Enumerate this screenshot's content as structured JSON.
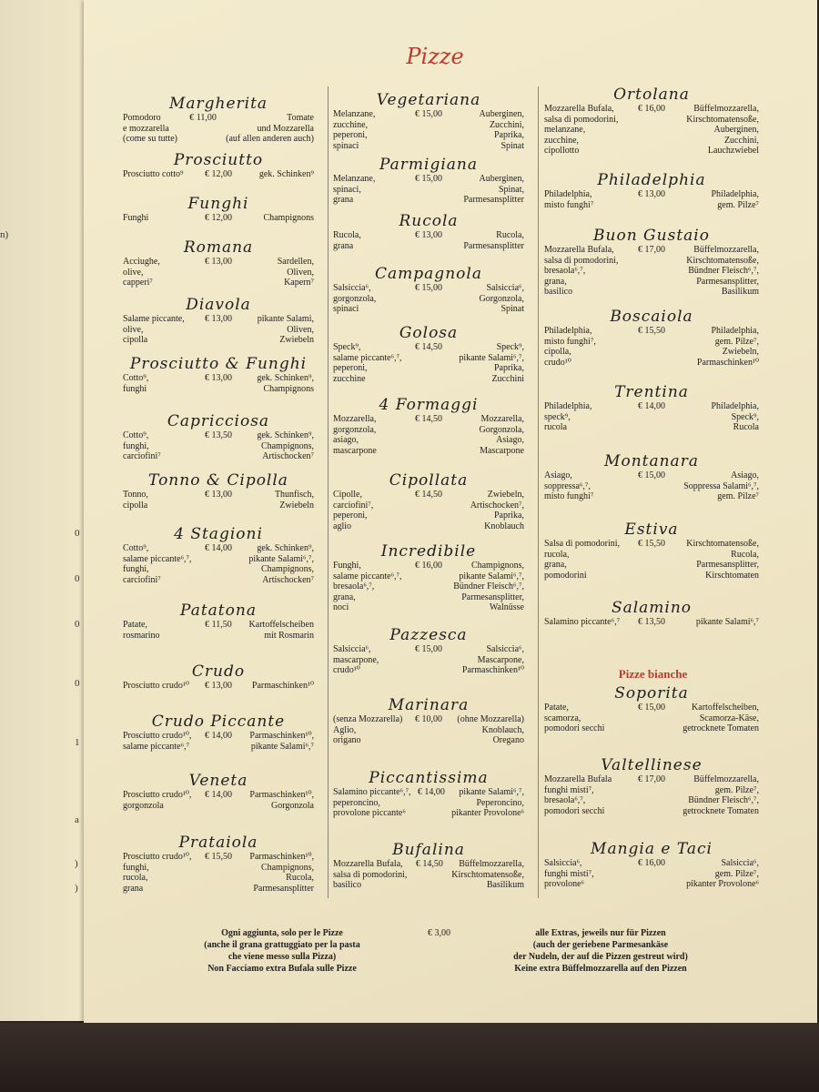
{
  "title": "Pizze",
  "left_page_fragments": [
    "n)",
    "0",
    "0",
    "0",
    "0",
    "1",
    "a",
    ")",
    ")"
  ],
  "columns": [
    {
      "items": [
        {
          "name": "Margherita",
          "price": "€ 11,00",
          "it": [
            "Pomodoro",
            "e mozzarella",
            "(come su tutte)"
          ],
          "de": [
            "Tomate",
            "und Mozzarella",
            "(auf allen anderen auch)"
          ]
        },
        {
          "name": "Prosciutto",
          "price": "€ 12,00",
          "it": [
            "Prosciutto cotto⁹"
          ],
          "de": [
            "gek. Schinken⁹"
          ]
        },
        {
          "name": "Funghi",
          "price": "€ 12,00",
          "it": [
            "Funghi"
          ],
          "de": [
            "Champignons"
          ]
        },
        {
          "name": "Romana",
          "price": "€ 13,00",
          "it": [
            "Acciughe,",
            "olive,",
            "capperi⁷"
          ],
          "de": [
            "Sardellen,",
            "Oliven,",
            "Kapern⁷"
          ]
        },
        {
          "name": "Diavola",
          "price": "€ 13,00",
          "it": [
            "Salame piccante,",
            "olive,",
            "cipolla"
          ],
          "de": [
            "pikante Salami,",
            "Oliven,",
            "Zwiebeln"
          ]
        },
        {
          "name": "Prosciutto & Funghi",
          "price": "€ 13,00",
          "it": [
            "Cotto⁹,",
            "funghi"
          ],
          "de": [
            "gek. Schinken⁹,",
            "Champignons"
          ]
        },
        {
          "name": "Capricciosa",
          "price": "€ 13,50",
          "it": [
            "Cotto⁹,",
            "funghi,",
            "carciofini⁷"
          ],
          "de": [
            "gek. Schinken⁹,",
            "Champignons,",
            "Artischocken⁷"
          ]
        },
        {
          "name": "Tonno & Cipolla",
          "price": "€ 13,00",
          "it": [
            "Tonno,",
            "cipolla"
          ],
          "de": [
            "Thunfisch,",
            "Zwiebeln"
          ]
        },
        {
          "name": "4 Stagioni",
          "price": "€ 14,00",
          "it": [
            "Cotto⁹,",
            "salame piccante⁶,⁷,",
            "funghi,",
            "carciofini⁷"
          ],
          "de": [
            "gek. Schinken⁹,",
            "pikante Salami⁶,⁷,",
            "Champignons,",
            "Artischocken⁷"
          ]
        },
        {
          "name": "Patatona",
          "price": "€ 11,50",
          "it": [
            "Patate,",
            "rosmarino"
          ],
          "de": [
            "Kartoffelscheiben",
            "mit Rosmarin"
          ]
        },
        {
          "name": "Crudo",
          "price": "€ 13,00",
          "it": [
            "Prosciutto crudo¹⁰"
          ],
          "de": [
            "Parmaschinken¹⁰"
          ]
        },
        {
          "name": "Crudo Piccante",
          "price": "€ 14,00",
          "it": [
            "Prosciutto crudo¹⁰,",
            "salame piccante⁶,⁷"
          ],
          "de": [
            "Parmaschinken¹⁰,",
            "pikante Salami⁶,⁷"
          ]
        },
        {
          "name": "Veneta",
          "price": "€ 14,00",
          "it": [
            "Prosciutto crudo¹⁰,",
            "gorgonzola"
          ],
          "de": [
            "Parmaschinken¹⁰,",
            "Gorgonzola"
          ]
        },
        {
          "name": "Prataiola",
          "price": "€ 15,50",
          "it": [
            "Prosciutto crudo¹⁰,",
            "funghi,",
            "rucola,",
            "grana"
          ],
          "de": [
            "Parmaschinken¹⁰,",
            "Champignons,",
            "Rucola,",
            "Parmesansplitter"
          ]
        }
      ]
    },
    {
      "items": [
        {
          "name": "Vegetariana",
          "price": "€ 15,00",
          "it": [
            "Melanzane,",
            "zucchine,",
            "peperoni,",
            "spinaci"
          ],
          "de": [
            "Auberginen,",
            "Zucchini,",
            "Paprika,",
            "Spinat"
          ]
        },
        {
          "name": "Parmigiana",
          "price": "€ 15,00",
          "it": [
            "Melanzane,",
            "spinaci,",
            "grana"
          ],
          "de": [
            "Auberginen,",
            "Spinat,",
            "Parmesansplitter"
          ]
        },
        {
          "name": "Rucola",
          "price": "€ 13,00",
          "it": [
            "Rucola,",
            "grana"
          ],
          "de": [
            "Rucola,",
            "Parmesansplitter"
          ]
        },
        {
          "name": "Campagnola",
          "price": "€ 15,00",
          "it": [
            "Salsiccia⁶,",
            "gorgonzola,",
            "spinaci"
          ],
          "de": [
            "Salsiccia⁶,",
            "Gorgonzola,",
            "Spinat"
          ]
        },
        {
          "name": "Golosa",
          "price": "€ 14,50",
          "it": [
            "Speck⁹,",
            "salame piccante⁶,⁷,",
            "peperoni,",
            "zucchine"
          ],
          "de": [
            "Speck⁹,",
            "pikante Salami⁶,⁷,",
            "Paprika,",
            "Zucchini"
          ]
        },
        {
          "name": "4 Formaggi",
          "price": "€ 14,50",
          "it": [
            "Mozzarella,",
            "gorgonzola,",
            "asiago,",
            "mascarpone"
          ],
          "de": [
            "Mozzarella,",
            "Gorgonzola,",
            "Asiago,",
            "Mascarpone"
          ]
        },
        {
          "name": "Cipollata",
          "price": "€ 14,50",
          "it": [
            "Cipolle,",
            "carciofini⁷,",
            "peperoni,",
            "aglio"
          ],
          "de": [
            "Zwiebeln,",
            "Artischocken⁷,",
            "Paprika,",
            "Knoblauch"
          ]
        },
        {
          "name": "Incredibile",
          "price": "€ 16,00",
          "it": [
            "Funghi,",
            "salame piccante⁶,⁷,",
            "bresaola⁶,⁷,",
            "grana,",
            "noci"
          ],
          "de": [
            "Champignons,",
            "pikante Salami⁶,⁷,",
            "Bündner Fleisch⁶,⁷,",
            "Parmesansplitter,",
            "Walnüsse"
          ]
        },
        {
          "name": "Pazzesca",
          "price": "€ 15,00",
          "it": [
            "Salsiccia⁶,",
            "mascarpone,",
            "crudo¹⁰"
          ],
          "de": [
            "Salsiccia⁶,",
            "Mascarpone,",
            "Parmaschinken¹⁰"
          ]
        },
        {
          "name": "Marinara",
          "price": "€ 10,00",
          "it": [
            "(senza Mozzarella)",
            "Aglio,",
            "origano"
          ],
          "de": [
            "(ohne Mozzarella)",
            "Knoblauch,",
            "Oregano"
          ]
        },
        {
          "name": "Piccantissima",
          "price": "€ 14,00",
          "it": [
            "Salamino piccante⁶,⁷,",
            "peperoncino,",
            "provolone piccante⁶"
          ],
          "de": [
            "pikante Salami⁶,⁷,",
            "Peperoncino,",
            "pikanter Provolone⁶"
          ]
        },
        {
          "name": "Bufalina",
          "price": "€ 14,50",
          "it": [
            "Mozzarella Bufala,",
            "salsa di pomodorini,",
            "basilico"
          ],
          "de": [
            "Büffelmozzarella,",
            "Kirschtomatensoße,",
            "Basilikum"
          ]
        }
      ]
    },
    {
      "items": [
        {
          "name": "Ortolana",
          "price": "€ 16,00",
          "it": [
            "Mozzarella Bufala,",
            "salsa di pomodorini,",
            "melanzane,",
            "zucchine,",
            "cipollotto"
          ],
          "de": [
            "Büffelmozzarella,",
            "Kirschtomatensoße,",
            "Auberginen,",
            "Zucchini,",
            "Lauchzwiebel"
          ]
        },
        {
          "name": "Philadelphia",
          "price": "€ 13,00",
          "it": [
            "Philadelphia,",
            "misto funghi⁷"
          ],
          "de": [
            "Philadelphia,",
            "gem. Pilze⁷"
          ]
        },
        {
          "name": "Buon Gustaio",
          "price": "€ 17,00",
          "it": [
            "Mozzarella Bufala,",
            "salsa di pomodorini,",
            "bresaola⁶,⁷,",
            "grana,",
            "basilico"
          ],
          "de": [
            "Büffelmozzarella,",
            "Kirschtomatensoße,",
            "Bündner Fleisch⁶,⁷,",
            "Parmesansplitter,",
            "Basilikum"
          ]
        },
        {
          "name": "Boscaiola",
          "price": "€ 15,50",
          "it": [
            "Philadelphia,",
            "misto funghi⁷,",
            "cipolla,",
            "crudo¹⁰"
          ],
          "de": [
            "Philadelphia,",
            "gem. Pilze⁷,",
            "Zwiebeln,",
            "Parmaschinken¹⁰"
          ]
        },
        {
          "name": "Trentina",
          "price": "€ 14,00",
          "it": [
            "Philadelphia,",
            "speck⁹,",
            "rucola"
          ],
          "de": [
            "Philadelphia,",
            "Speck⁹,",
            "Rucola"
          ]
        },
        {
          "name": "Montanara",
          "price": "€ 15,00",
          "it": [
            "Asiago,",
            "soppressa⁶,⁷,",
            "misto funghi⁷"
          ],
          "de": [
            "Asiago,",
            "Soppressa Salami⁶,⁷,",
            "gem. Pilze⁷"
          ]
        },
        {
          "name": "Estiva",
          "price": "€ 15,50",
          "it": [
            "Salsa di pomodorini,",
            "rucola,",
            "grana,",
            "pomodorini"
          ],
          "de": [
            "Kirschtomatensoße,",
            "Rucola,",
            "Parmesansplitter,",
            "Kirschtomaten"
          ]
        },
        {
          "name": "Salamino",
          "price": "€ 13,50",
          "it": [
            "Salamino piccante⁶,⁷"
          ],
          "de": [
            "pikante Salami⁶,⁷"
          ]
        },
        {
          "name": "Soporita",
          "price": "€ 15,00",
          "it": [
            "Patate,",
            "scamorza,",
            "pomodori secchi"
          ],
          "de": [
            "Kartoffelscheiben,",
            "Scamorza-Käse,",
            "getrocknete Tomaten"
          ]
        },
        {
          "name": "Valtellinese",
          "price": "€ 17,00",
          "it": [
            "Mozzarella Bufala",
            "funghi misti⁷,",
            "bresaola⁶,⁷,",
            "pomodori secchi"
          ],
          "de": [
            "Büffelmozzarella,",
            "gem. Pilze⁷,",
            "Bündner Fleisch⁶,⁷,",
            "getrocknete Tomaten"
          ]
        },
        {
          "name": "Mangia e Taci",
          "price": "€ 16,00",
          "it": [
            "Salsiccia⁶,",
            "funghi misti⁷,",
            "provolone⁶"
          ],
          "de": [
            "Salsiccia⁶,",
            "gem. Pilze⁷,",
            "pikanter Provolone⁶"
          ]
        }
      ]
    }
  ],
  "section_bianche": "Pizze bianche",
  "footer": {
    "it": [
      "Ogni aggiunta, solo per le Pizze",
      "(anche il grana grattuggiato per la pasta",
      "che viene messo sulla Pizza)",
      "Non Facciamo extra Bufala sulle Pizze"
    ],
    "price": "€ 3,00",
    "de": [
      "alle Extras, jeweils nur für Pizzen",
      "(auch der geriebene Parmesankäse",
      "der Nudeln, der auf die Pizzen gestreut wird)",
      "Keine extra Büffelmozzarella auf den Pizzen"
    ]
  },
  "colors": {
    "title": "#c0392b",
    "paper": "#f1e8c9",
    "text": "#222222"
  }
}
